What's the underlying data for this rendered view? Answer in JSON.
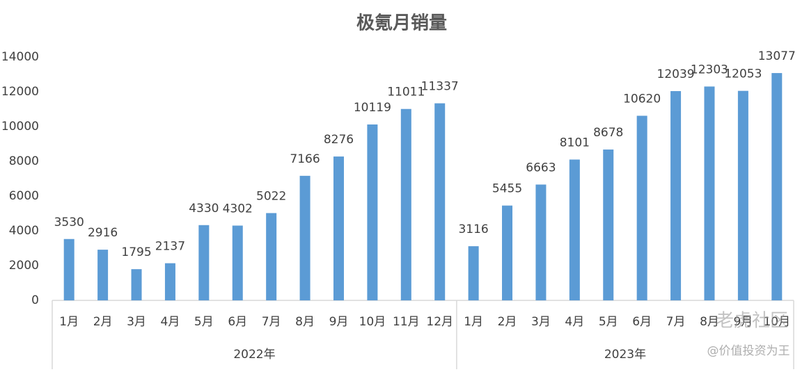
{
  "chart_data": {
    "type": "bar",
    "title": "极氪月销量",
    "groups": [
      {
        "label": "2022年",
        "categories": [
          "1月",
          "2月",
          "3月",
          "4月",
          "5月",
          "6月",
          "7月",
          "8月",
          "9月",
          "10月",
          "11月",
          "12月"
        ],
        "values": [
          3530,
          2916,
          1795,
          2137,
          4330,
          4302,
          5022,
          7166,
          8276,
          10119,
          11011,
          11337
        ]
      },
      {
        "label": "2023年",
        "categories": [
          "1月",
          "2月",
          "3月",
          "4月",
          "5月",
          "6月",
          "7月",
          "8月",
          "9月",
          "10月"
        ],
        "values": [
          3116,
          5455,
          6663,
          8101,
          8678,
          10620,
          12039,
          12303,
          12053,
          13077
        ]
      }
    ],
    "color": "#5b9bd5",
    "ylim": [
      0,
      14000
    ],
    "yticks": [
      0,
      2000,
      4000,
      6000,
      8000,
      10000,
      12000,
      14000
    ],
    "grid": false,
    "watermarks": [
      "老虎社区",
      "@价值投资为王"
    ]
  }
}
